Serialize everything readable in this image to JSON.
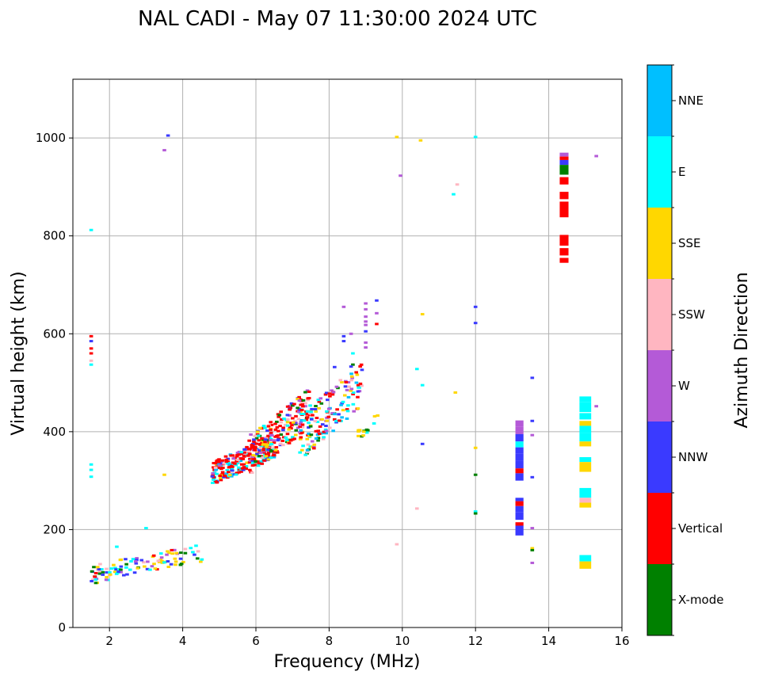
{
  "chart_data": {
    "type": "scatter",
    "title": "NAL CADI - May 07 11:30:00 2024 UTC",
    "xlabel": "Frequency (MHz)",
    "ylabel": "Virtual height (km)",
    "xlim": [
      1,
      16
    ],
    "ylim": [
      0,
      1120
    ],
    "xticks": [
      2,
      4,
      6,
      8,
      10,
      12,
      14,
      16
    ],
    "xtick_labels": [
      "2",
      "4",
      "6",
      "8",
      "10",
      "12",
      "14",
      "16"
    ],
    "yticks": [
      0,
      200,
      400,
      600,
      800,
      1000
    ],
    "ytick_labels": [
      "0",
      "200",
      "400",
      "600",
      "800",
      "1000"
    ],
    "grid": true,
    "colorbar": {
      "title": "Azimuth Direction",
      "categories": [
        "X-mode",
        "Vertical",
        "NNW",
        "W",
        "SSW",
        "SSE",
        "E",
        "NNE"
      ],
      "colors": [
        "#008000",
        "#ff0000",
        "#3a3aff",
        "#b45ad7",
        "#ffb6c1",
        "#ffd700",
        "#00ffff",
        "#00bfff"
      ]
    },
    "points": [
      {
        "f": 1.5,
        "h": 812,
        "dir": "E"
      },
      {
        "f": 1.5,
        "h": 595,
        "dir": "Vertical"
      },
      {
        "f": 1.5,
        "h": 585,
        "dir": "NNW"
      },
      {
        "f": 1.5,
        "h": 570,
        "dir": "Vertical"
      },
      {
        "f": 1.5,
        "h": 560,
        "dir": "Vertical"
      },
      {
        "f": 1.5,
        "h": 545,
        "dir": "SSW"
      },
      {
        "f": 1.5,
        "h": 537,
        "dir": "E"
      },
      {
        "f": 1.5,
        "h": 333,
        "dir": "E"
      },
      {
        "f": 1.5,
        "h": 322,
        "dir": "E"
      },
      {
        "f": 1.5,
        "h": 308,
        "dir": "E"
      },
      {
        "f": 3.6,
        "h": 1005,
        "dir": "NNW"
      },
      {
        "f": 3.5,
        "h": 975,
        "dir": "W"
      },
      {
        "f": 3.5,
        "h": 312,
        "dir": "SSE"
      },
      {
        "f": 3.0,
        "h": 203,
        "dir": "E"
      },
      {
        "f": 2.2,
        "h": 165,
        "dir": "E"
      },
      {
        "f": 9.85,
        "h": 1002,
        "dir": "SSE"
      },
      {
        "f": 10.5,
        "h": 995,
        "dir": "SSE"
      },
      {
        "f": 12.0,
        "h": 1002,
        "dir": "E"
      },
      {
        "f": 9.95,
        "h": 923,
        "dir": "W"
      },
      {
        "f": 11.5,
        "h": 905,
        "dir": "SSW"
      },
      {
        "f": 11.4,
        "h": 885,
        "dir": "E"
      },
      {
        "f": 12.0,
        "h": 655,
        "dir": "NNW"
      },
      {
        "f": 12.0,
        "h": 622,
        "dir": "NNW"
      },
      {
        "f": 10.55,
        "h": 640,
        "dir": "SSE"
      },
      {
        "f": 10.4,
        "h": 528,
        "dir": "E"
      },
      {
        "f": 10.55,
        "h": 495,
        "dir": "E"
      },
      {
        "f": 11.45,
        "h": 480,
        "dir": "SSE"
      },
      {
        "f": 10.55,
        "h": 375,
        "dir": "NNW"
      },
      {
        "f": 12.0,
        "h": 367,
        "dir": "SSE"
      },
      {
        "f": 12.0,
        "h": 312,
        "dir": "X-mode"
      },
      {
        "f": 10.4,
        "h": 243,
        "dir": "SSW"
      },
      {
        "f": 12.0,
        "h": 237,
        "dir": "E"
      },
      {
        "f": 12.0,
        "h": 233,
        "dir": "X-mode"
      },
      {
        "f": 9.85,
        "h": 170,
        "dir": "SSW"
      },
      {
        "f": 8.4,
        "h": 655,
        "dir": "W"
      },
      {
        "f": 9.0,
        "h": 662,
        "dir": "W"
      },
      {
        "f": 9.0,
        "h": 650,
        "dir": "W"
      },
      {
        "f": 9.3,
        "h": 668,
        "dir": "NNW"
      },
      {
        "f": 9.3,
        "h": 642,
        "dir": "W"
      },
      {
        "f": 9.0,
        "h": 635,
        "dir": "W"
      },
      {
        "f": 9.0,
        "h": 625,
        "dir": "W"
      },
      {
        "f": 9.0,
        "h": 618,
        "dir": "W"
      },
      {
        "f": 9.3,
        "h": 620,
        "dir": "Vertical"
      },
      {
        "f": 9.0,
        "h": 605,
        "dir": "NNW"
      },
      {
        "f": 8.4,
        "h": 595,
        "dir": "NNW"
      },
      {
        "f": 8.4,
        "h": 585,
        "dir": "NNW"
      },
      {
        "f": 8.6,
        "h": 600,
        "dir": "W"
      },
      {
        "f": 9.0,
        "h": 582,
        "dir": "W"
      },
      {
        "f": 9.0,
        "h": 572,
        "dir": "W"
      },
      {
        "f": 8.65,
        "h": 560,
        "dir": "E"
      },
      {
        "f": 8.65,
        "h": 537,
        "dir": "X-mode"
      },
      {
        "f": 8.15,
        "h": 532,
        "dir": "NNW"
      },
      {
        "f": 8.6,
        "h": 533,
        "dir": "NNW"
      },
      {
        "f": 13.55,
        "h": 510,
        "dir": "NNW"
      },
      {
        "f": 13.55,
        "h": 422,
        "dir": "NNW"
      },
      {
        "f": 13.55,
        "h": 393,
        "dir": "W"
      },
      {
        "f": 13.55,
        "h": 307,
        "dir": "NNW"
      },
      {
        "f": 13.55,
        "h": 203,
        "dir": "W"
      },
      {
        "f": 13.55,
        "h": 162,
        "dir": "SSE"
      },
      {
        "f": 13.55,
        "h": 158,
        "dir": "X-mode"
      },
      {
        "f": 13.55,
        "h": 132,
        "dir": "W"
      },
      {
        "f": 15.3,
        "h": 963,
        "dir": "W"
      },
      {
        "f": 15.3,
        "h": 452,
        "dir": "W"
      }
    ],
    "columns": [
      {
        "f": 13.2,
        "width": 0.22,
        "segments": [
          {
            "h0": 410,
            "h1": 423,
            "dir": "W"
          },
          {
            "h0": 395,
            "h1": 410,
            "dir": "W"
          },
          {
            "h0": 380,
            "h1": 395,
            "dir": "NNW"
          },
          {
            "h0": 368,
            "h1": 380,
            "dir": "E"
          },
          {
            "h0": 355,
            "h1": 368,
            "dir": "NNW"
          },
          {
            "h0": 340,
            "h1": 355,
            "dir": "NNW"
          },
          {
            "h0": 325,
            "h1": 340,
            "dir": "NNW"
          },
          {
            "h0": 315,
            "h1": 325,
            "dir": "Vertical"
          },
          {
            "h0": 300,
            "h1": 315,
            "dir": "NNW"
          },
          {
            "h0": 258,
            "h1": 265,
            "dir": "NNW"
          },
          {
            "h0": 248,
            "h1": 258,
            "dir": "Vertical"
          },
          {
            "h0": 235,
            "h1": 248,
            "dir": "NNW"
          },
          {
            "h0": 220,
            "h1": 235,
            "dir": "NNW"
          },
          {
            "h0": 208,
            "h1": 215,
            "dir": "Vertical"
          },
          {
            "h0": 188,
            "h1": 208,
            "dir": "NNW"
          }
        ]
      },
      {
        "f": 14.42,
        "width": 0.24,
        "segments": [
          {
            "h0": 962,
            "h1": 970,
            "dir": "W"
          },
          {
            "h0": 955,
            "h1": 962,
            "dir": "Vertical"
          },
          {
            "h0": 945,
            "h1": 955,
            "dir": "NNW"
          },
          {
            "h0": 925,
            "h1": 945,
            "dir": "X-mode"
          },
          {
            "h0": 905,
            "h1": 920,
            "dir": "Vertical"
          },
          {
            "h0": 875,
            "h1": 890,
            "dir": "Vertical"
          },
          {
            "h0": 838,
            "h1": 870,
            "dir": "Vertical"
          },
          {
            "h0": 780,
            "h1": 802,
            "dir": "Vertical"
          },
          {
            "h0": 760,
            "h1": 775,
            "dir": "Vertical"
          },
          {
            "h0": 745,
            "h1": 755,
            "dir": "Vertical"
          }
        ]
      },
      {
        "f": 15.0,
        "width": 0.32,
        "segments": [
          {
            "h0": 460,
            "h1": 472,
            "dir": "E"
          },
          {
            "h0": 440,
            "h1": 460,
            "dir": "E"
          },
          {
            "h0": 425,
            "h1": 438,
            "dir": "E"
          },
          {
            "h0": 412,
            "h1": 422,
            "dir": "SSE"
          },
          {
            "h0": 398,
            "h1": 412,
            "dir": "E"
          },
          {
            "h0": 380,
            "h1": 398,
            "dir": "E"
          },
          {
            "h0": 370,
            "h1": 380,
            "dir": "SSE"
          },
          {
            "h0": 338,
            "h1": 348,
            "dir": "E"
          },
          {
            "h0": 318,
            "h1": 338,
            "dir": "SSE"
          },
          {
            "h0": 265,
            "h1": 285,
            "dir": "E"
          },
          {
            "h0": 255,
            "h1": 265,
            "dir": "SSW"
          },
          {
            "h0": 245,
            "h1": 255,
            "dir": "SSE"
          },
          {
            "h0": 135,
            "h1": 148,
            "dir": "E"
          },
          {
            "h0": 120,
            "h1": 135,
            "dir": "SSE"
          }
        ]
      }
    ],
    "clusters": [
      {
        "f0": 1.45,
        "f1": 4.55,
        "h0": 88,
        "h1": 172,
        "n": 110,
        "seed": 11,
        "weights": {
          "SSE": 4,
          "E": 3,
          "NNW": 2,
          "W": 1,
          "Vertical": 1,
          "SSW": 1,
          "X-mode": 1
        }
      },
      {
        "f0": 4.8,
        "f1": 6.5,
        "h0": 290,
        "h1": 395,
        "n": 260,
        "seed": 23,
        "weights": {
          "Vertical": 7,
          "E": 2,
          "NNE": 1,
          "SSE": 1,
          "SSW": 1,
          "NNW": 1,
          "W": 1
        }
      },
      {
        "f0": 5.8,
        "f1": 7.5,
        "h0": 310,
        "h1": 490,
        "n": 220,
        "seed": 37,
        "weights": {
          "Vertical": 5,
          "SSE": 2,
          "E": 1,
          "W": 1,
          "NNW": 1,
          "X-mode": 1,
          "SSW": 1
        }
      },
      {
        "f0": 7.2,
        "f1": 8.9,
        "h0": 340,
        "h1": 545,
        "n": 150,
        "seed": 51,
        "weights": {
          "E": 2,
          "SSE": 2,
          "Vertical": 2,
          "NNW": 1,
          "W": 1,
          "X-mode": 1,
          "SSW": 1,
          "NNE": 1
        }
      },
      {
        "f0": 8.8,
        "f1": 9.4,
        "h0": 385,
        "h1": 440,
        "n": 14,
        "seed": 67,
        "weights": {
          "SSE": 3,
          "X-mode": 1,
          "E": 1
        }
      }
    ]
  }
}
